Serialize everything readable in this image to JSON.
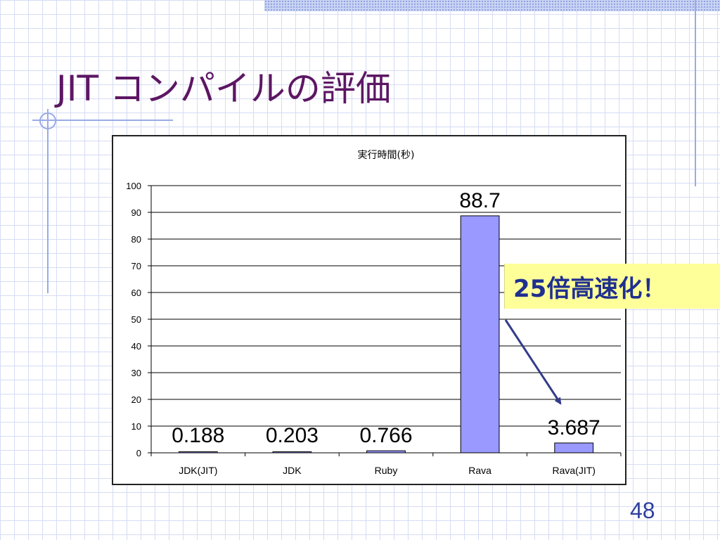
{
  "slide": {
    "title": "JIT コンパイルの評価",
    "callout": "25倍高速化！",
    "page_number": "48"
  },
  "colors": {
    "title": "#5c1663",
    "bar_fill": "#9999ff",
    "arrow": "#333c8a",
    "callout_bg": "#ffff99",
    "callout_text": "#1f2f8f",
    "grid_background": "#d6dcf4",
    "accent_rules": "#9aaae6"
  },
  "chart_data": {
    "type": "bar",
    "title": "実行時間(秒)",
    "categories": [
      "JDK(JIT)",
      "JDK",
      "Ruby",
      "Rava",
      "Rava(JIT)"
    ],
    "values": [
      0.188,
      0.203,
      0.766,
      88.7,
      3.687
    ],
    "data_labels": [
      "0.188",
      "0.203",
      "0.766",
      "88.7",
      "3.687"
    ],
    "ylim": [
      0,
      100
    ],
    "yticks": [
      "0",
      "10",
      "20",
      "30",
      "40",
      "50",
      "60",
      "70",
      "80",
      "90",
      "100"
    ],
    "grid": true,
    "legend": "none",
    "annotation_arrow": {
      "from": "callout",
      "to_category": "Rava(JIT)"
    }
  }
}
